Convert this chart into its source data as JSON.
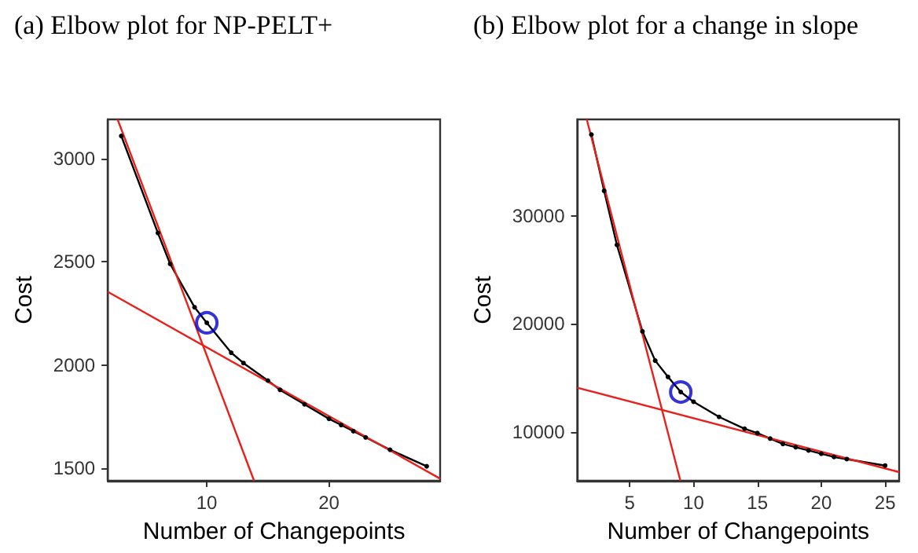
{
  "chart_data": [
    {
      "type": "line",
      "title": "(a) Elbow plot for NP-PELT+",
      "xlabel": "Number of Changepoints",
      "ylabel": "Cost",
      "xlim": [
        1.9,
        29.1
      ],
      "ylim": [
        1440,
        3190
      ],
      "xticks": [
        10,
        20
      ],
      "yticks": [
        1500,
        2000,
        2500,
        3000
      ],
      "grid": false,
      "series": [
        {
          "color": "#000000",
          "marker": "circle",
          "x": [
            3,
            6,
            7,
            9,
            10,
            12,
            13,
            15,
            16,
            18,
            20,
            21,
            22,
            23,
            25,
            28
          ],
          "values": [
            3110,
            2640,
            2490,
            2280,
            2205,
            2060,
            2010,
            1925,
            1880,
            1810,
            1740,
            1710,
            1680,
            1650,
            1590,
            1510
          ]
        },
        {
          "color": "#e8201c",
          "marker": "none",
          "x": [
            2.7,
            13.87
          ],
          "values": [
            3190,
            1440
          ]
        },
        {
          "color": "#e8201c",
          "marker": "none",
          "x": [
            1.9,
            29.1
          ],
          "values": [
            2355,
            1450
          ]
        },
        {
          "type": "scatter",
          "color": "#0000cc",
          "marker": "circle",
          "x": [
            10
          ],
          "values": [
            2205
          ]
        }
      ]
    },
    {
      "type": "line",
      "title": "(b) Elbow plot for a change in slope",
      "xlabel": "Number of Changepoints",
      "ylabel": "Cost",
      "xlim": [
        0.9,
        26.1
      ],
      "ylim": [
        5500,
        38900
      ],
      "xticks": [
        5,
        10,
        15,
        20,
        25
      ],
      "yticks": [
        10000,
        20000,
        30000
      ],
      "grid": false,
      "series": [
        {
          "color": "#000000",
          "marker": "circle",
          "x": [
            2,
            3,
            4,
            6,
            7,
            8,
            9,
            10,
            12,
            14,
            15,
            16,
            17,
            18,
            19,
            20,
            21,
            22,
            25
          ],
          "values": [
            37500,
            32300,
            27300,
            19300,
            16600,
            15100,
            13700,
            12800,
            11400,
            10300,
            9900,
            9400,
            8900,
            8600,
            8300,
            8000,
            7700,
            7500,
            6900
          ]
        },
        {
          "color": "#e8201c",
          "marker": "none",
          "x": [
            1.64,
            8.97
          ],
          "values": [
            38900,
            5500
          ]
        },
        {
          "color": "#e8201c",
          "marker": "none",
          "x": [
            0.9,
            26.1
          ],
          "values": [
            14100,
            6300
          ]
        },
        {
          "type": "scatter",
          "color": "#0000cc",
          "marker": "circle",
          "x": [
            9
          ],
          "values": [
            13700
          ]
        }
      ]
    }
  ]
}
